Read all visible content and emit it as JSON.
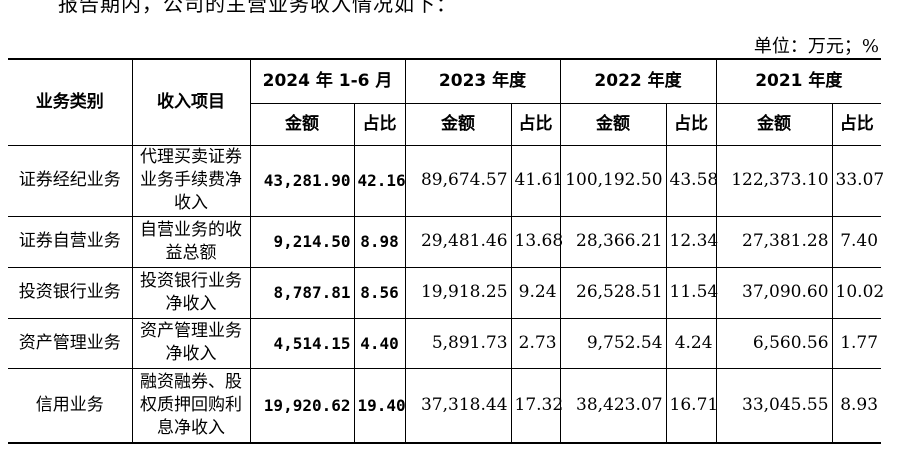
{
  "intro_text": "报告期内，公司的主营业务收入情况如下：",
  "unit_label": "单位：万元；%",
  "table": {
    "header": {
      "category": "业务类别",
      "item": "收入项目",
      "periods": [
        "2024 年 1-6 月",
        "2023 年度",
        "2022 年度",
        "2021 年度"
      ],
      "amount": "金额",
      "ratio": "占比"
    },
    "rows": [
      {
        "category": "证券经纪业务",
        "item": "代理买卖证券业务手续费净收入",
        "values": [
          {
            "amount": "43,281.90",
            "ratio": "42.16"
          },
          {
            "amount": "89,674.57",
            "ratio": "41.61"
          },
          {
            "amount": "100,192.50",
            "ratio": "43.58"
          },
          {
            "amount": "122,373.10",
            "ratio": "33.07"
          }
        ]
      },
      {
        "category": "证券自营业务",
        "item": "自营业务的收益总额",
        "values": [
          {
            "amount": "9,214.50",
            "ratio": "8.98"
          },
          {
            "amount": "29,481.46",
            "ratio": "13.68"
          },
          {
            "amount": "28,366.21",
            "ratio": "12.34"
          },
          {
            "amount": "27,381.28",
            "ratio": "7.40"
          }
        ]
      },
      {
        "category": "投资银行业务",
        "item": "投资银行业务净收入",
        "values": [
          {
            "amount": "8,787.81",
            "ratio": "8.56"
          },
          {
            "amount": "19,918.25",
            "ratio": "9.24"
          },
          {
            "amount": "26,528.51",
            "ratio": "11.54"
          },
          {
            "amount": "37,090.60",
            "ratio": "10.02"
          }
        ]
      },
      {
        "category": "资产管理业务",
        "item": "资产管理业务净收入",
        "values": [
          {
            "amount": "4,514.15",
            "ratio": "4.40"
          },
          {
            "amount": "5,891.73",
            "ratio": "2.73"
          },
          {
            "amount": "9,752.54",
            "ratio": "4.24"
          },
          {
            "amount": "6,560.56",
            "ratio": "1.77"
          }
        ]
      },
      {
        "category": "信用业务",
        "item": "融资融券、股权质押回购利息净收入",
        "values": [
          {
            "amount": "19,920.62",
            "ratio": "19.40"
          },
          {
            "amount": "37,318.44",
            "ratio": "17.32"
          },
          {
            "amount": "38,423.07",
            "ratio": "16.71"
          },
          {
            "amount": "33,045.55",
            "ratio": "8.93"
          }
        ]
      }
    ]
  }
}
